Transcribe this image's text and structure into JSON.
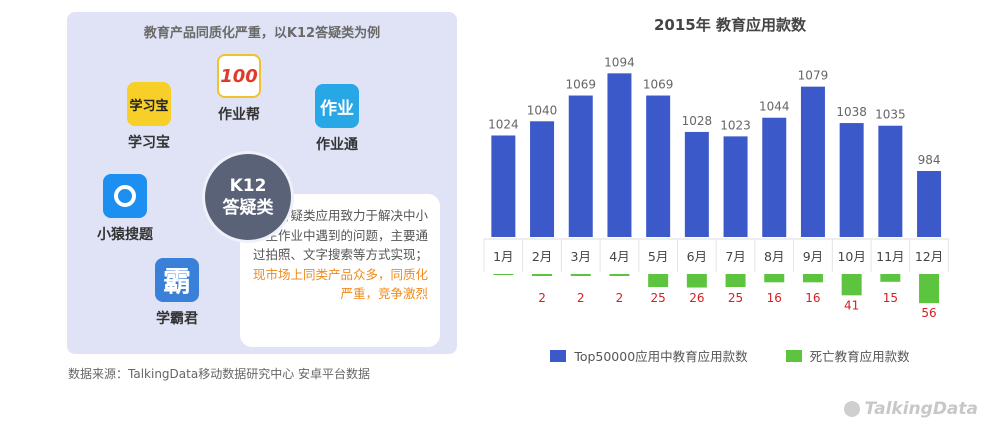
{
  "left_panel": {
    "title": "教育产品同质化严重，以K12答疑类为例",
    "apps": [
      {
        "label": "学习宝",
        "glyph": "学习宝"
      },
      {
        "label": "作业帮",
        "glyph": "100"
      },
      {
        "label": "作业通",
        "glyph": "作业"
      },
      {
        "label": "小猿搜题",
        "glyph": ""
      },
      {
        "label": "学霸君",
        "glyph": "霸"
      }
    ],
    "center": {
      "line1": "K12",
      "line2": "答疑类"
    },
    "callout_normal": "K12答疑类应用致力于解决中小学生作业中遇到的问题，主要通过拍照、文字搜索等方式实现；",
    "callout_highlight": "现市场上同类产品众多，同质化严重，竞争激烈",
    "colors": {
      "panel": "#dfe3f5",
      "highlight": "#f08a1c"
    }
  },
  "source": "数据来源：TalkingData移动数据研究中心 安卓平台数据",
  "brand": "TalkingData",
  "chart_data": {
    "type": "bar",
    "title": "2015年 教育应用款数",
    "categories": [
      "1月",
      "2月",
      "3月",
      "4月",
      "5月",
      "6月",
      "7月",
      "8月",
      "9月",
      "10月",
      "11月",
      "12月"
    ],
    "series": [
      {
        "name": "Top50000应用中教育应用款数",
        "color": "#3c59c9",
        "values": [
          1024,
          1040,
          1069,
          1094,
          1069,
          1028,
          1023,
          1044,
          1079,
          1038,
          1035,
          984
        ]
      },
      {
        "name": "死亡教育应用款数",
        "color": "#5cc43e",
        "values": [
          null,
          2,
          2,
          2,
          25,
          26,
          25,
          16,
          16,
          41,
          15,
          56
        ]
      }
    ],
    "labels_color": {
      "top": "#666666",
      "bottom": "#d62020"
    },
    "legend": "bottom"
  }
}
